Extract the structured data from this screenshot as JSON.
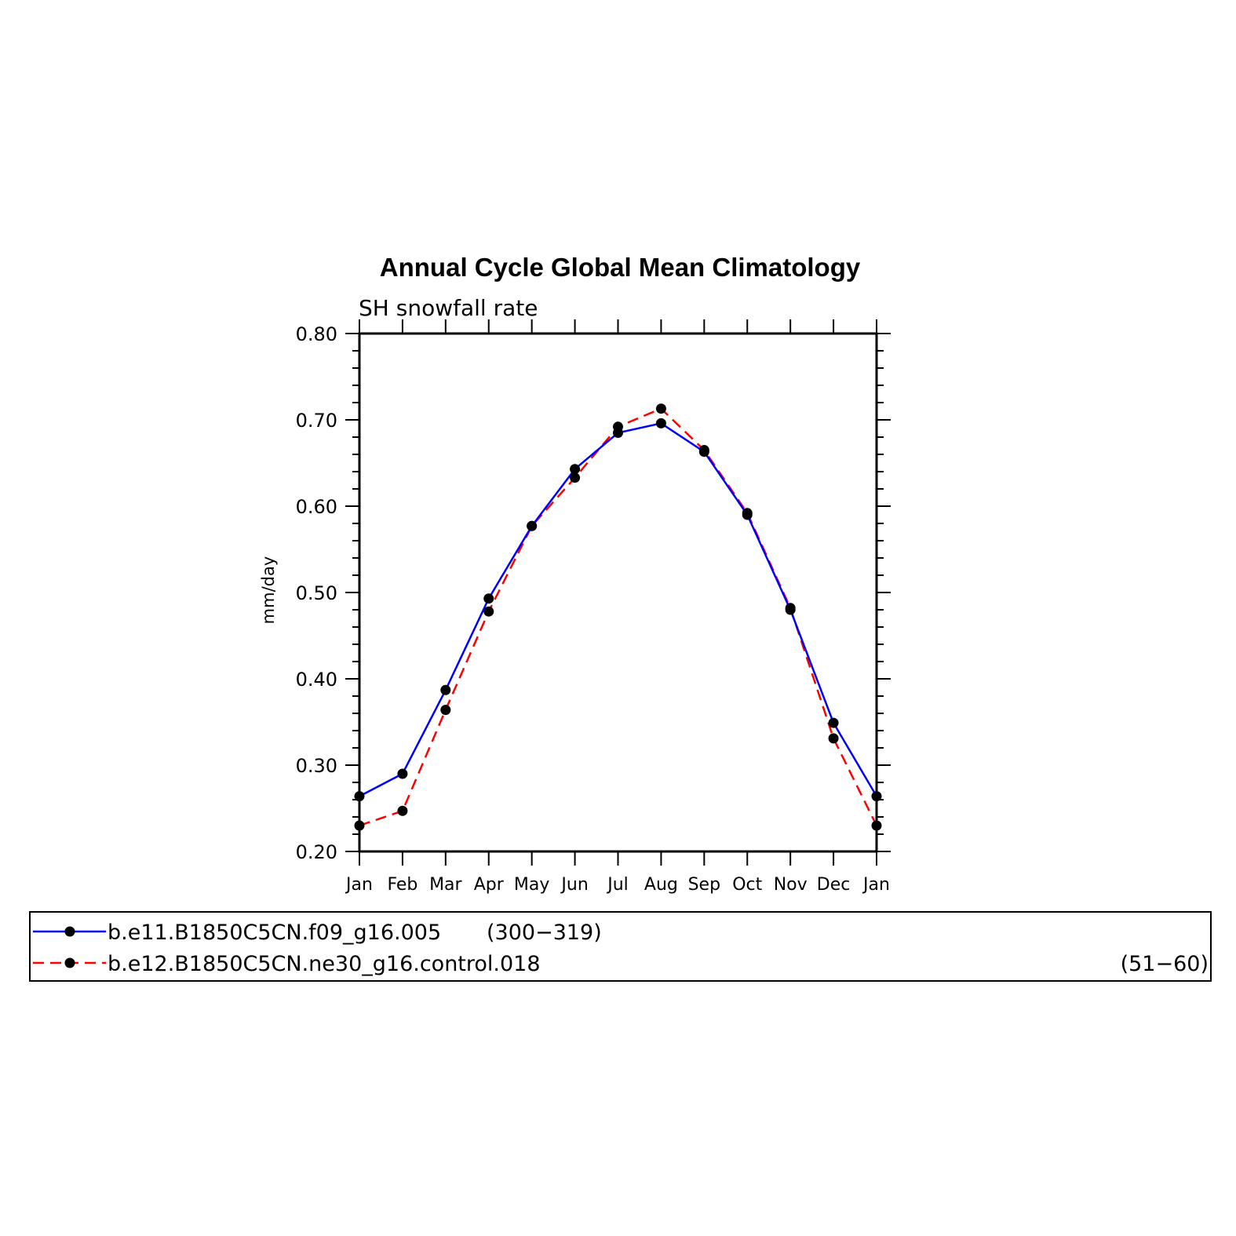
{
  "chart_data": {
    "type": "line",
    "title": "Annual Cycle Global Mean Climatology",
    "subtitle": "SH snowfall rate",
    "xlabel": "",
    "ylabel": "mm/day",
    "categories": [
      "Jan",
      "Feb",
      "Mar",
      "Apr",
      "May",
      "Jun",
      "Jul",
      "Aug",
      "Sep",
      "Oct",
      "Nov",
      "Dec",
      "Jan"
    ],
    "ylim": [
      0.2,
      0.8
    ],
    "yticks": [
      "0.20",
      "0.30",
      "0.40",
      "0.50",
      "0.60",
      "0.70",
      "0.80"
    ],
    "grid": false,
    "series": [
      {
        "name": "b.e11.B1850C5CN.f09_g16.005",
        "years": "(300−319)",
        "color": "#0000ff",
        "dash": "solid",
        "values": [
          0.264,
          0.29,
          0.387,
          0.493,
          0.577,
          0.643,
          0.685,
          0.696,
          0.663,
          0.59,
          0.48,
          0.349,
          0.264
        ]
      },
      {
        "name": "b.e12.B1850C5CN.ne30_g16.control.018",
        "years": "(51−60)",
        "color": "#ff0000",
        "dash": "dashed",
        "values": [
          0.23,
          0.247,
          0.364,
          0.478,
          0.577,
          0.633,
          0.692,
          0.713,
          0.665,
          0.592,
          0.482,
          0.331,
          0.23
        ]
      }
    ],
    "legend_position": "bottom"
  }
}
